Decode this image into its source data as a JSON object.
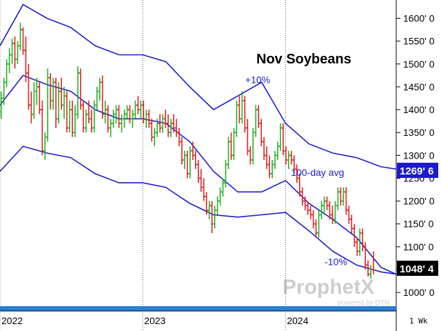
{
  "chart_data": {
    "type": "ohlc",
    "title": "Nov Soybeans",
    "period": "1 Wk",
    "y_axis": {
      "ticks": [
        "1600' 0",
        "1550' 0",
        "1500' 0",
        "1450' 0",
        "1400' 0",
        "1350' 0",
        "1300' 0",
        "1250' 0",
        "1200' 0",
        "1150' 0",
        "1100' 0",
        "1050' 0",
        "1000' 0"
      ],
      "ylim": [
        970,
        1640
      ],
      "side": "right"
    },
    "x_axis": {
      "ticks": [
        "2022",
        "2023",
        "2024"
      ],
      "xlim": [
        "2022-01-01",
        "2024-10-10"
      ]
    },
    "last_price_label": "1048' 4",
    "upper_band_value_label": "1269' 6",
    "annotations": [
      {
        "text": "+10%",
        "at": [
          "2023-09-20",
          1458
        ]
      },
      {
        "text": "100-day avg",
        "at": [
          "2024-01-15",
          1255
        ]
      },
      {
        "text": "-10%",
        "at": [
          "2024-04-10",
          1060
        ]
      }
    ],
    "colors": {
      "up": "#22b022",
      "down": "#e02020",
      "band": "#1a1ad0",
      "last_price_bg": "#000000",
      "band_tag_bg": "#1a1ad0"
    },
    "series": [
      {
        "name": "100-day avg",
        "type": "line",
        "points": [
          [
            "2022-01-01",
            1410
          ],
          [
            "2022-03-01",
            1475
          ],
          [
            "2022-05-01",
            1455
          ],
          [
            "2022-07-01",
            1440
          ],
          [
            "2022-09-01",
            1400
          ],
          [
            "2022-11-01",
            1380
          ],
          [
            "2023-01-01",
            1380
          ],
          [
            "2023-03-01",
            1370
          ],
          [
            "2023-05-01",
            1330
          ],
          [
            "2023-07-01",
            1265
          ],
          [
            "2023-09-01",
            1220
          ],
          [
            "2023-11-01",
            1220
          ],
          [
            "2024-01-01",
            1245
          ],
          [
            "2024-03-01",
            1195
          ],
          [
            "2024-05-01",
            1160
          ],
          [
            "2024-07-01",
            1120
          ],
          [
            "2024-09-01",
            1055
          ],
          [
            "2024-10-10",
            1040
          ]
        ]
      },
      {
        "name": "+10%",
        "type": "line",
        "points": [
          [
            "2022-01-01",
            1540
          ],
          [
            "2022-03-01",
            1630
          ],
          [
            "2022-05-01",
            1600
          ],
          [
            "2022-07-01",
            1580
          ],
          [
            "2022-09-01",
            1540
          ],
          [
            "2022-11-01",
            1520
          ],
          [
            "2023-01-01",
            1520
          ],
          [
            "2023-03-01",
            1505
          ],
          [
            "2023-05-01",
            1450
          ],
          [
            "2023-07-01",
            1400
          ],
          [
            "2023-09-01",
            1430
          ],
          [
            "2023-11-01",
            1460
          ],
          [
            "2024-01-01",
            1370
          ],
          [
            "2024-03-01",
            1325
          ],
          [
            "2024-05-01",
            1305
          ],
          [
            "2024-07-01",
            1295
          ],
          [
            "2024-09-01",
            1275
          ],
          [
            "2024-10-10",
            1270
          ]
        ]
      },
      {
        "name": "-10%",
        "type": "line",
        "points": [
          [
            "2022-01-01",
            1265
          ],
          [
            "2022-03-01",
            1320
          ],
          [
            "2022-05-01",
            1305
          ],
          [
            "2022-07-01",
            1295
          ],
          [
            "2022-09-01",
            1260
          ],
          [
            "2022-11-01",
            1240
          ],
          [
            "2023-01-01",
            1240
          ],
          [
            "2023-03-01",
            1230
          ],
          [
            "2023-05-01",
            1195
          ],
          [
            "2023-07-01",
            1170
          ],
          [
            "2023-09-01",
            1165
          ],
          [
            "2023-11-01",
            1170
          ],
          [
            "2024-01-01",
            1175
          ],
          [
            "2024-03-01",
            1135
          ],
          [
            "2024-05-01",
            1090
          ],
          [
            "2024-07-01",
            1060
          ],
          [
            "2024-09-01",
            1045
          ],
          [
            "2024-10-10",
            1040
          ]
        ]
      }
    ],
    "bars": [
      [
        "2022-01-04",
        1395,
        1440,
        1380,
        1425
      ],
      [
        "2022-01-11",
        1425,
        1470,
        1410,
        1460
      ],
      [
        "2022-01-18",
        1460,
        1510,
        1450,
        1500
      ],
      [
        "2022-01-25",
        1500,
        1535,
        1480,
        1520
      ],
      [
        "2022-02-01",
        1520,
        1555,
        1500,
        1545
      ],
      [
        "2022-02-08",
        1545,
        1560,
        1490,
        1510
      ],
      [
        "2022-02-15",
        1510,
        1550,
        1500,
        1540
      ],
      [
        "2022-02-22",
        1540,
        1590,
        1530,
        1575
      ],
      [
        "2022-03-01",
        1575,
        1580,
        1520,
        1530
      ],
      [
        "2022-03-08",
        1530,
        1560,
        1460,
        1480
      ],
      [
        "2022-03-15",
        1480,
        1500,
        1400,
        1410
      ],
      [
        "2022-03-22",
        1410,
        1440,
        1370,
        1390
      ],
      [
        "2022-03-29",
        1390,
        1460,
        1380,
        1440
      ],
      [
        "2022-04-05",
        1440,
        1470,
        1410,
        1450
      ],
      [
        "2022-04-12",
        1450,
        1460,
        1390,
        1400
      ],
      [
        "2022-04-19",
        1400,
        1420,
        1300,
        1310
      ],
      [
        "2022-04-26",
        1310,
        1350,
        1290,
        1340
      ],
      [
        "2022-05-03",
        1340,
        1490,
        1330,
        1470
      ],
      [
        "2022-05-10",
        1470,
        1480,
        1400,
        1420
      ],
      [
        "2022-05-17",
        1420,
        1470,
        1400,
        1460
      ],
      [
        "2022-05-24",
        1460,
        1470,
        1360,
        1380
      ],
      [
        "2022-05-31",
        1380,
        1460,
        1370,
        1440
      ],
      [
        "2022-06-07",
        1440,
        1470,
        1400,
        1410
      ],
      [
        "2022-06-14",
        1410,
        1450,
        1380,
        1430
      ],
      [
        "2022-06-21",
        1430,
        1440,
        1350,
        1360
      ],
      [
        "2022-06-28",
        1360,
        1420,
        1350,
        1400
      ],
      [
        "2022-07-05",
        1400,
        1420,
        1340,
        1350
      ],
      [
        "2022-07-12",
        1350,
        1410,
        1340,
        1390
      ],
      [
        "2022-07-19",
        1390,
        1495,
        1380,
        1480
      ],
      [
        "2022-07-26",
        1480,
        1490,
        1400,
        1410
      ],
      [
        "2022-08-02",
        1410,
        1420,
        1350,
        1360
      ],
      [
        "2022-08-09",
        1360,
        1400,
        1350,
        1390
      ],
      [
        "2022-08-16",
        1390,
        1420,
        1370,
        1380
      ],
      [
        "2022-08-23",
        1380,
        1400,
        1350,
        1360
      ],
      [
        "2022-08-30",
        1360,
        1420,
        1350,
        1410
      ],
      [
        "2022-09-06",
        1410,
        1450,
        1400,
        1440
      ],
      [
        "2022-09-13",
        1440,
        1470,
        1420,
        1460
      ],
      [
        "2022-09-20",
        1460,
        1475,
        1380,
        1390
      ],
      [
        "2022-09-27",
        1390,
        1420,
        1370,
        1400
      ],
      [
        "2022-10-04",
        1400,
        1410,
        1350,
        1360
      ],
      [
        "2022-10-11",
        1360,
        1380,
        1340,
        1370
      ],
      [
        "2022-10-18",
        1370,
        1400,
        1360,
        1390
      ],
      [
        "2022-10-25",
        1390,
        1410,
        1370,
        1400
      ],
      [
        "2022-11-01",
        1400,
        1410,
        1360,
        1370
      ],
      [
        "2022-11-08",
        1370,
        1390,
        1350,
        1380
      ],
      [
        "2022-11-15",
        1380,
        1400,
        1360,
        1390
      ],
      [
        "2022-11-22",
        1390,
        1410,
        1380,
        1400
      ],
      [
        "2022-11-29",
        1400,
        1410,
        1370,
        1380
      ],
      [
        "2022-12-06",
        1380,
        1400,
        1360,
        1390
      ],
      [
        "2022-12-13",
        1390,
        1420,
        1380,
        1410
      ],
      [
        "2022-12-20",
        1410,
        1430,
        1390,
        1400
      ],
      [
        "2022-12-27",
        1400,
        1420,
        1380,
        1410
      ],
      [
        "2023-01-03",
        1410,
        1420,
        1370,
        1380
      ],
      [
        "2023-01-10",
        1380,
        1400,
        1360,
        1390
      ],
      [
        "2023-01-17",
        1390,
        1400,
        1360,
        1370
      ],
      [
        "2023-01-24",
        1370,
        1380,
        1330,
        1340
      ],
      [
        "2023-01-31",
        1340,
        1360,
        1320,
        1350
      ],
      [
        "2023-02-07",
        1350,
        1380,
        1340,
        1370
      ],
      [
        "2023-02-14",
        1370,
        1390,
        1350,
        1360
      ],
      [
        "2023-02-21",
        1360,
        1390,
        1350,
        1380
      ],
      [
        "2023-02-28",
        1380,
        1400,
        1360,
        1370
      ],
      [
        "2023-03-07",
        1370,
        1390,
        1340,
        1350
      ],
      [
        "2023-03-14",
        1350,
        1380,
        1340,
        1370
      ],
      [
        "2023-03-21",
        1370,
        1390,
        1350,
        1360
      ],
      [
        "2023-03-28",
        1360,
        1380,
        1340,
        1350
      ],
      [
        "2023-04-04",
        1350,
        1360,
        1320,
        1330
      ],
      [
        "2023-04-11",
        1330,
        1340,
        1280,
        1290
      ],
      [
        "2023-04-18",
        1290,
        1310,
        1270,
        1300
      ],
      [
        "2023-04-25",
        1300,
        1310,
        1250,
        1260
      ],
      [
        "2023-05-02",
        1260,
        1320,
        1250,
        1310
      ],
      [
        "2023-05-09",
        1310,
        1330,
        1290,
        1300
      ],
      [
        "2023-05-16",
        1300,
        1310,
        1270,
        1280
      ],
      [
        "2023-05-23",
        1280,
        1290,
        1240,
        1250
      ],
      [
        "2023-05-30",
        1250,
        1270,
        1220,
        1230
      ],
      [
        "2023-06-06",
        1230,
        1250,
        1200,
        1210
      ],
      [
        "2023-06-13",
        1210,
        1220,
        1170,
        1180
      ],
      [
        "2023-06-20",
        1180,
        1200,
        1160,
        1190
      ],
      [
        "2023-06-27",
        1190,
        1200,
        1130,
        1150
      ],
      [
        "2023-07-04",
        1150,
        1190,
        1140,
        1180
      ],
      [
        "2023-07-11",
        1180,
        1210,
        1170,
        1200
      ],
      [
        "2023-07-18",
        1200,
        1230,
        1190,
        1220
      ],
      [
        "2023-07-25",
        1220,
        1250,
        1210,
        1240
      ],
      [
        "2023-08-01",
        1240,
        1290,
        1230,
        1280
      ],
      [
        "2023-08-08",
        1280,
        1340,
        1270,
        1330
      ],
      [
        "2023-08-15",
        1330,
        1350,
        1290,
        1300
      ],
      [
        "2023-08-22",
        1300,
        1360,
        1290,
        1350
      ],
      [
        "2023-08-29",
        1350,
        1420,
        1340,
        1410
      ],
      [
        "2023-09-05",
        1410,
        1430,
        1370,
        1380
      ],
      [
        "2023-09-12",
        1380,
        1440,
        1370,
        1420
      ],
      [
        "2023-09-19",
        1420,
        1430,
        1350,
        1360
      ],
      [
        "2023-09-26",
        1360,
        1380,
        1300,
        1310
      ],
      [
        "2023-10-03",
        1310,
        1320,
        1280,
        1290
      ],
      [
        "2023-10-10",
        1290,
        1360,
        1280,
        1350
      ],
      [
        "2023-10-17",
        1350,
        1410,
        1340,
        1400
      ],
      [
        "2023-10-24",
        1400,
        1410,
        1360,
        1370
      ],
      [
        "2023-10-31",
        1370,
        1380,
        1320,
        1330
      ],
      [
        "2023-11-07",
        1330,
        1340,
        1290,
        1300
      ],
      [
        "2023-11-14",
        1300,
        1320,
        1270,
        1280
      ],
      [
        "2023-11-21",
        1280,
        1300,
        1250,
        1260
      ],
      [
        "2023-11-28",
        1260,
        1290,
        1250,
        1280
      ],
      [
        "2023-12-05",
        1280,
        1310,
        1270,
        1300
      ],
      [
        "2023-12-12",
        1300,
        1330,
        1290,
        1320
      ],
      [
        "2023-12-19",
        1320,
        1370,
        1310,
        1360
      ],
      [
        "2023-12-26",
        1360,
        1370,
        1300,
        1310
      ],
      [
        "2024-01-02",
        1310,
        1320,
        1280,
        1290
      ],
      [
        "2024-01-09",
        1290,
        1310,
        1270,
        1300
      ],
      [
        "2024-01-16",
        1300,
        1310,
        1280,
        1290
      ],
      [
        "2024-01-23",
        1290,
        1300,
        1260,
        1270
      ],
      [
        "2024-01-30",
        1270,
        1280,
        1240,
        1250
      ],
      [
        "2024-02-06",
        1250,
        1260,
        1210,
        1220
      ],
      [
        "2024-02-13",
        1220,
        1230,
        1190,
        1200
      ],
      [
        "2024-02-20",
        1200,
        1210,
        1180,
        1190
      ],
      [
        "2024-02-27",
        1190,
        1200,
        1170,
        1180
      ],
      [
        "2024-03-05",
        1180,
        1190,
        1160,
        1170
      ],
      [
        "2024-03-12",
        1170,
        1180,
        1140,
        1150
      ],
      [
        "2024-03-19",
        1150,
        1160,
        1120,
        1130
      ],
      [
        "2024-03-26",
        1130,
        1180,
        1120,
        1170
      ],
      [
        "2024-04-02",
        1170,
        1200,
        1160,
        1190
      ],
      [
        "2024-04-09",
        1190,
        1210,
        1170,
        1200
      ],
      [
        "2024-04-16",
        1200,
        1210,
        1180,
        1190
      ],
      [
        "2024-04-23",
        1190,
        1200,
        1160,
        1170
      ],
      [
        "2024-04-30",
        1170,
        1190,
        1150,
        1160
      ],
      [
        "2024-05-07",
        1160,
        1200,
        1150,
        1190
      ],
      [
        "2024-05-14",
        1190,
        1230,
        1180,
        1220
      ],
      [
        "2024-05-21",
        1220,
        1230,
        1190,
        1200
      ],
      [
        "2024-05-28",
        1200,
        1230,
        1190,
        1220
      ],
      [
        "2024-06-04",
        1220,
        1230,
        1170,
        1180
      ],
      [
        "2024-06-11",
        1180,
        1190,
        1150,
        1160
      ],
      [
        "2024-06-18",
        1160,
        1170,
        1130,
        1140
      ],
      [
        "2024-06-25",
        1140,
        1150,
        1100,
        1110
      ],
      [
        "2024-07-02",
        1110,
        1120,
        1080,
        1090
      ],
      [
        "2024-07-09",
        1090,
        1140,
        1080,
        1130
      ],
      [
        "2024-07-16",
        1130,
        1140,
        1090,
        1100
      ],
      [
        "2024-07-23",
        1100,
        1110,
        1050,
        1060
      ],
      [
        "2024-07-30",
        1060,
        1070,
        1035,
        1040
      ],
      [
        "2024-08-06",
        1040,
        1060,
        1030,
        1050
      ],
      [
        "2024-08-13",
        1050,
        1090,
        1040,
        1048.5
      ]
    ]
  },
  "watermark": {
    "brand": "ProphetX",
    "powered_by": "powered by DTN"
  }
}
